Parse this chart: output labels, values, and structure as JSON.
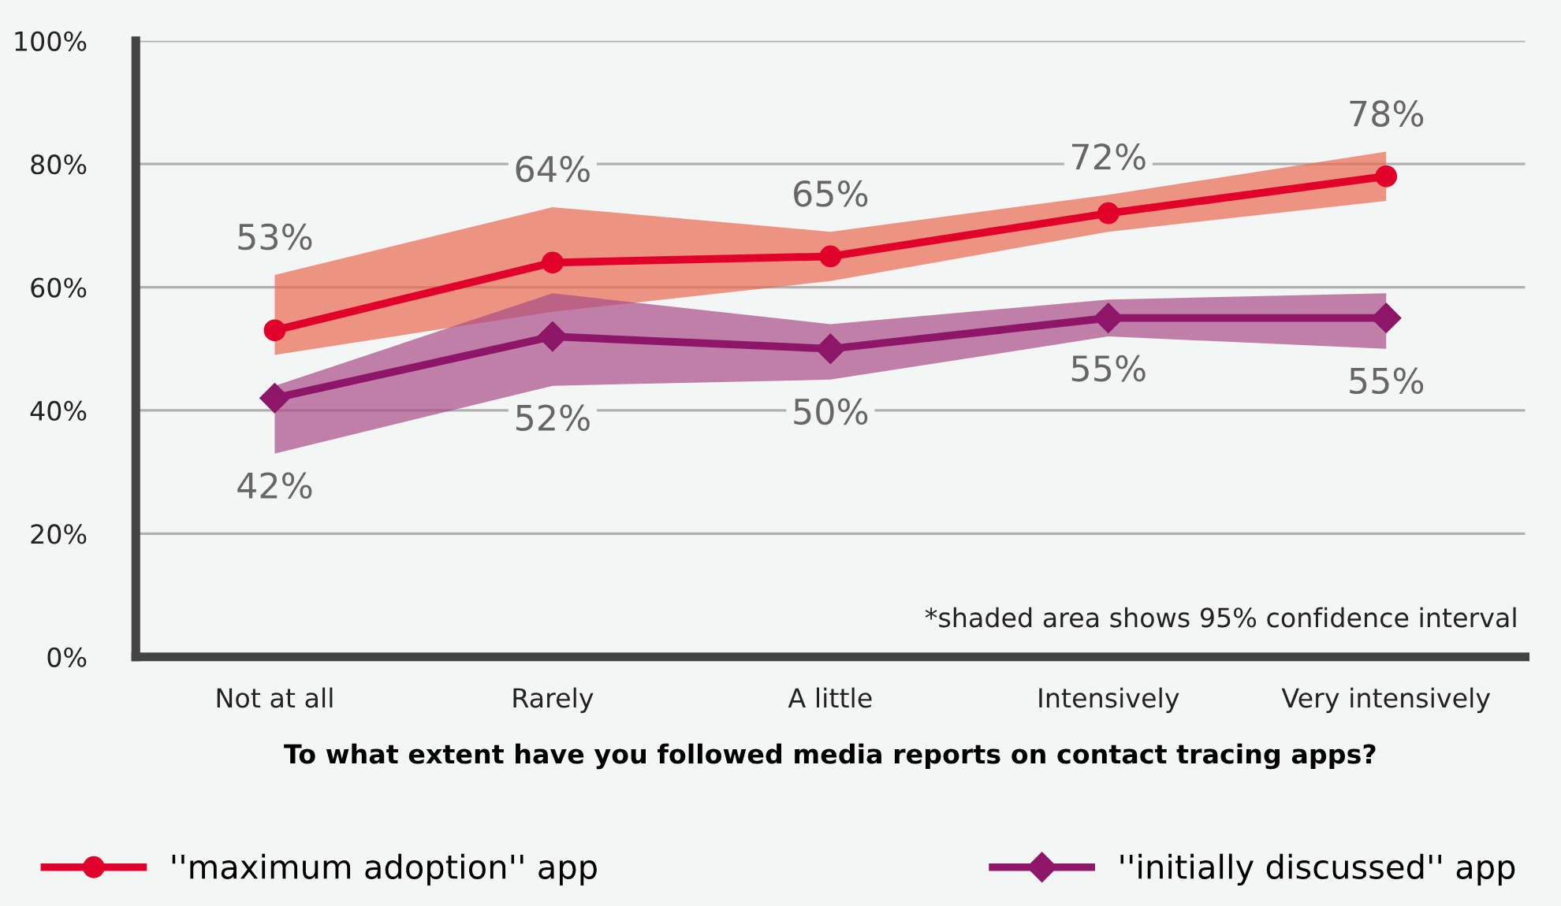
{
  "chart_data": {
    "type": "line",
    "xlabel": "To what extent have you followed media reports on contact tracing apps?",
    "categories": [
      "Not at all",
      "Rarely",
      "A little",
      "Intensively",
      "Very intensively"
    ],
    "series": [
      {
        "name": "''maximum adoption'' app",
        "color": "#e0002a",
        "values": [
          53,
          64,
          65,
          72,
          78
        ],
        "value_labels": [
          "53%",
          "64%",
          "65%",
          "72%",
          "78%"
        ],
        "lower": [
          49,
          56,
          61,
          69,
          74
        ],
        "upper": [
          62,
          73,
          69,
          75,
          82
        ],
        "marker": "circle"
      },
      {
        "name": "''initially discussed'' app",
        "color": "#8e1668",
        "values": [
          42,
          52,
          50,
          55,
          55
        ],
        "value_labels": [
          "42%",
          "52%",
          "50%",
          "55%",
          "55%"
        ],
        "lower": [
          33,
          44,
          45,
          52,
          50
        ],
        "upper": [
          44,
          59,
          54,
          58,
          59
        ],
        "marker": "diamond"
      }
    ],
    "ylim": [
      0,
      100
    ],
    "yticks": [
      {
        "value": 0,
        "label": "0%"
      },
      {
        "value": 20,
        "label": "20%"
      },
      {
        "value": 40,
        "label": "40%"
      },
      {
        "value": 60,
        "label": "60%"
      },
      {
        "value": 80,
        "label": "80%"
      },
      {
        "value": 100,
        "label": "100%"
      }
    ],
    "grid": "y",
    "legend": "bottom",
    "line_style": "solid",
    "annotations": [
      "*shaded area shows 95% confidence interval"
    ]
  }
}
